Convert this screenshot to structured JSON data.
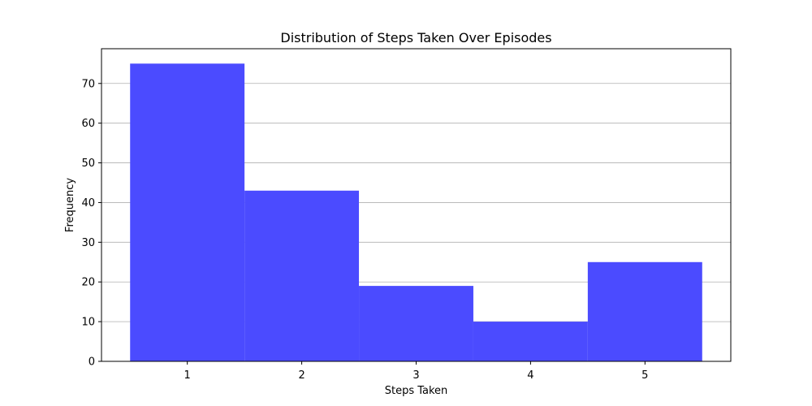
{
  "chart_data": {
    "type": "bar",
    "title": "Distribution of Steps Taken Over Episodes",
    "xlabel": "Steps Taken",
    "ylabel": "Frequency",
    "categories": [
      1,
      2,
      3,
      4,
      5
    ],
    "values": [
      75,
      43,
      19,
      10,
      25
    ],
    "bar_width": 1.0,
    "xlim": [
      0.25,
      5.75
    ],
    "ylim": [
      0,
      78.75
    ],
    "xticks": [
      1,
      2,
      3,
      4,
      5
    ],
    "yticks": [
      0,
      10,
      20,
      30,
      40,
      50,
      60,
      70
    ],
    "grid": {
      "axis": "y",
      "on": true
    },
    "bar_color": "#4b4bff"
  }
}
